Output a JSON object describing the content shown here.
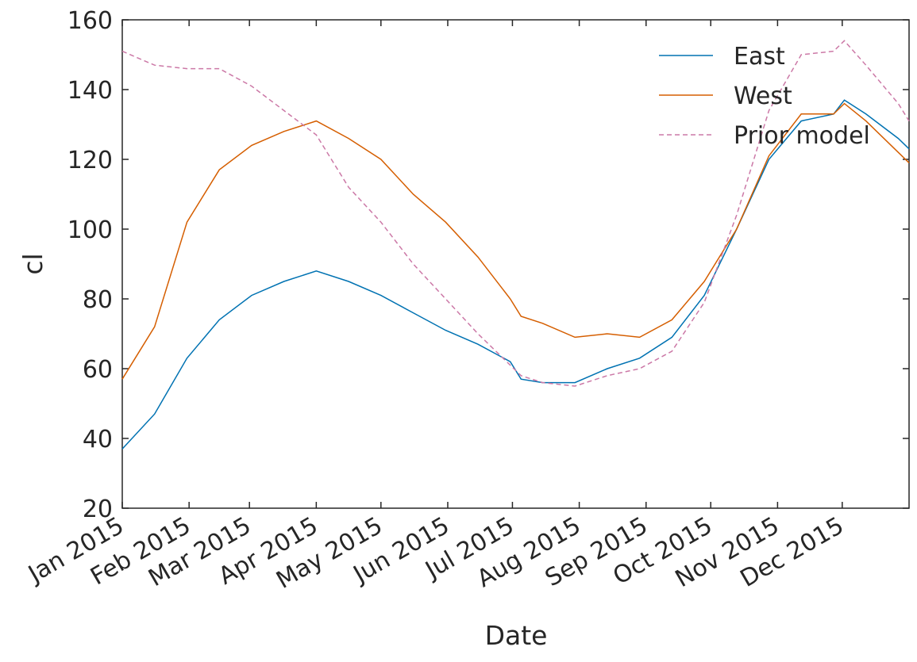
{
  "chart_data": {
    "type": "line",
    "x_label": "Date",
    "y_label": "cl",
    "x": [
      0,
      15,
      30,
      45,
      60,
      75,
      90,
      105,
      120,
      135,
      150,
      165,
      180,
      185,
      195,
      210,
      225,
      240,
      255,
      270,
      285,
      300,
      315,
      330,
      335,
      345,
      360,
      365
    ],
    "series": [
      {
        "name": "East",
        "color": "#0072b2",
        "dash": false,
        "values": [
          37,
          47,
          63,
          74,
          81,
          85,
          88,
          85,
          81,
          76,
          71,
          67,
          62,
          57,
          56,
          56,
          60,
          63,
          69,
          81,
          100,
          120,
          131,
          133,
          137,
          133,
          126,
          123
        ]
      },
      {
        "name": "West",
        "color": "#d55e00",
        "dash": false,
        "values": [
          57,
          72,
          102,
          117,
          124,
          128,
          131,
          126,
          120,
          110,
          102,
          92,
          80,
          75,
          73,
          69,
          70,
          69,
          74,
          85,
          100,
          121,
          133,
          133,
          136,
          131,
          122,
          119
        ]
      },
      {
        "name": "Prior model",
        "color": "#cc79a7",
        "dash": true,
        "values": [
          151,
          147,
          146,
          146,
          141,
          134,
          127,
          112,
          102,
          90,
          80,
          70,
          61,
          58,
          56,
          55,
          58,
          60,
          65,
          79,
          104,
          134,
          150,
          151,
          154,
          147,
          136,
          131
        ]
      }
    ],
    "xlim": [
      0,
      365
    ],
    "xticks": [
      {
        "value": 0,
        "label": "Jan 2015"
      },
      {
        "value": 31,
        "label": "Feb 2015"
      },
      {
        "value": 59,
        "label": "Mar 2015"
      },
      {
        "value": 90,
        "label": "Apr 2015"
      },
      {
        "value": 120,
        "label": "May 2015"
      },
      {
        "value": 151,
        "label": "Jun 2015"
      },
      {
        "value": 181,
        "label": "Jul 2015"
      },
      {
        "value": 212,
        "label": "Aug 2015"
      },
      {
        "value": 243,
        "label": "Sep 2015"
      },
      {
        "value": 273,
        "label": "Oct 2015"
      },
      {
        "value": 304,
        "label": "Nov 2015"
      },
      {
        "value": 334,
        "label": "Dec 2015"
      }
    ],
    "ylim": [
      20,
      160
    ],
    "yticks": [
      20,
      40,
      60,
      80,
      100,
      120,
      140,
      160
    ],
    "grid": false,
    "legend": "upper right"
  }
}
